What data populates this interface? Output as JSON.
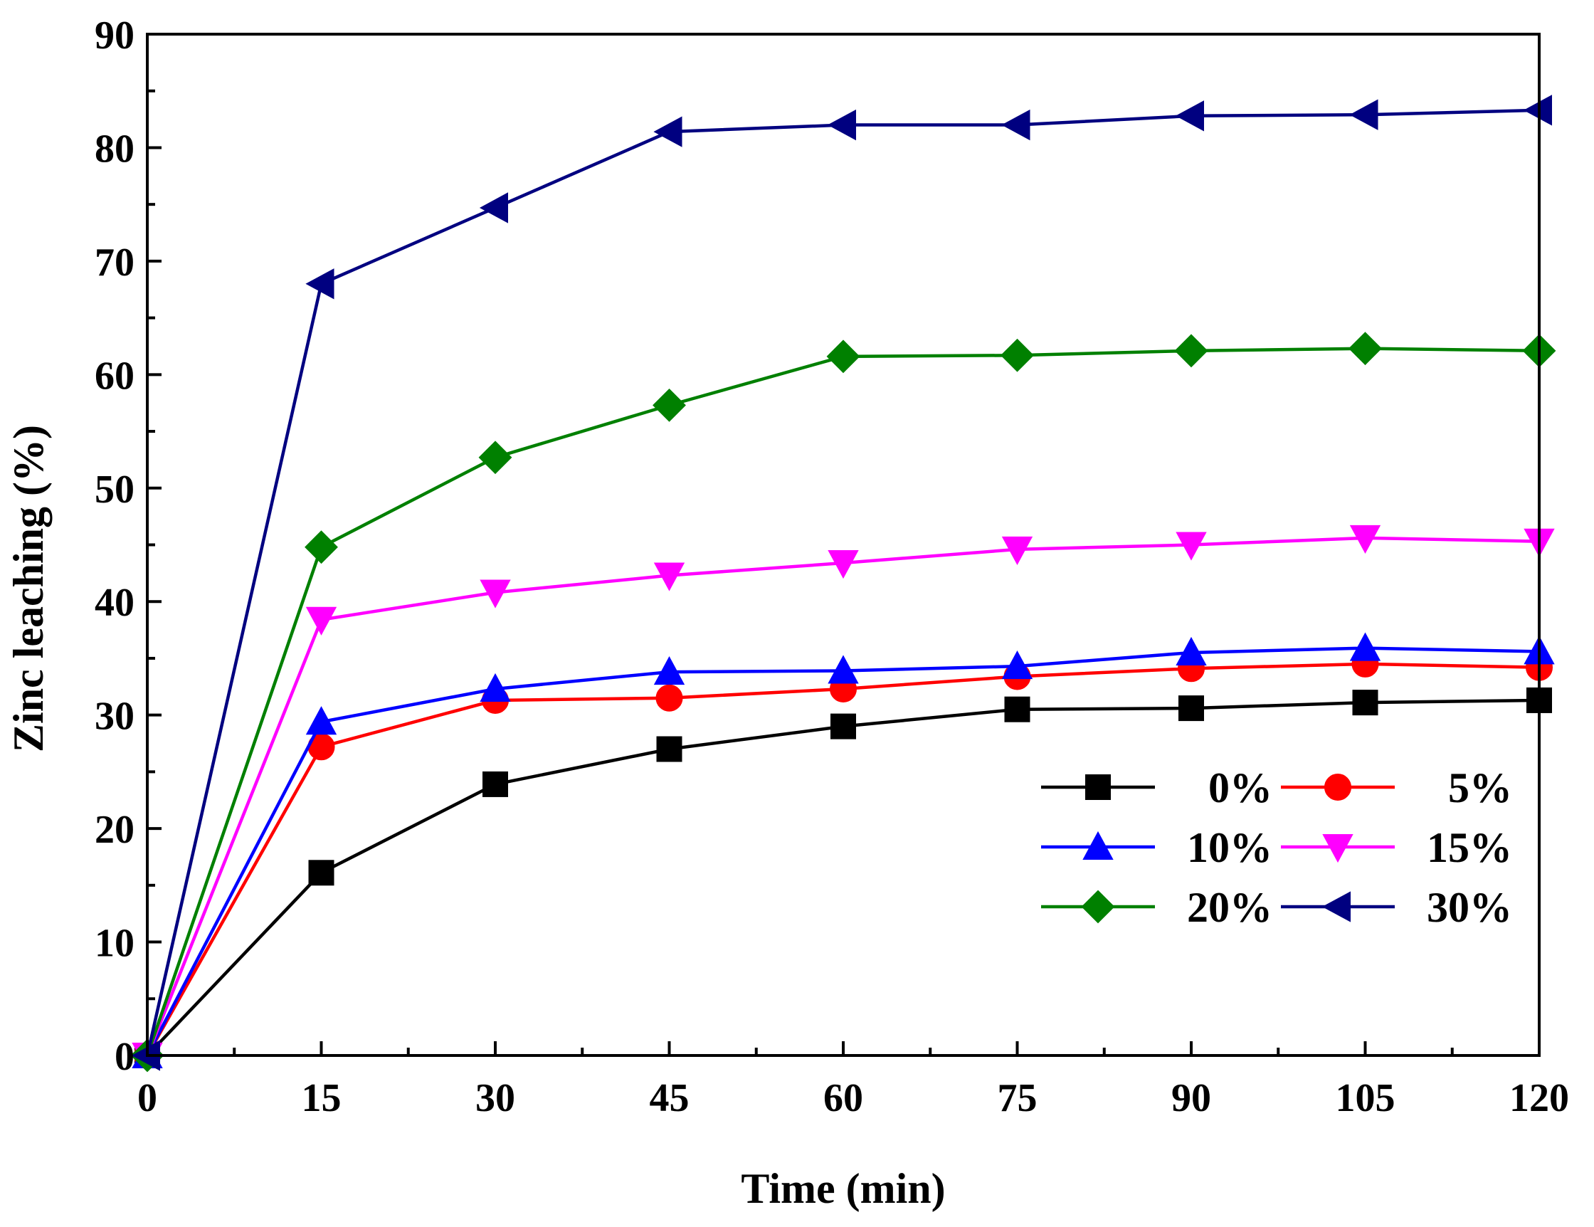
{
  "chart_data": {
    "type": "line",
    "xlabel": "Time (min)",
    "ylabel": "Zinc leaching (%)",
    "xlim": [
      0,
      120
    ],
    "ylim": [
      0,
      90
    ],
    "xticks": [
      "0",
      "15",
      "30",
      "45",
      "60",
      "75",
      "90",
      "105",
      "120"
    ],
    "yticks": [
      "0",
      "10",
      "20",
      "30",
      "40",
      "50",
      "60",
      "70",
      "80",
      "90"
    ],
    "grid": false,
    "legend_position": "bottom-right",
    "x": [
      0,
      15,
      30,
      45,
      60,
      75,
      90,
      105,
      120
    ],
    "series": [
      {
        "name": "0%",
        "color": "#000000",
        "marker": "square",
        "values": [
          0,
          16.1,
          23.9,
          27.0,
          29.0,
          30.5,
          30.6,
          31.1,
          31.3
        ]
      },
      {
        "name": "5%",
        "color": "#ff0000",
        "marker": "circle",
        "values": [
          0,
          27.2,
          31.3,
          31.5,
          32.3,
          33.4,
          34.1,
          34.5,
          34.2
        ]
      },
      {
        "name": "10%",
        "color": "#0000ff",
        "marker": "triangle-up",
        "values": [
          0,
          29.4,
          32.3,
          33.8,
          33.9,
          34.3,
          35.5,
          35.9,
          35.6
        ]
      },
      {
        "name": "15%",
        "color": "#ff00ff",
        "marker": "triangle-down",
        "values": [
          0,
          38.4,
          40.8,
          42.3,
          43.4,
          44.6,
          45.0,
          45.6,
          45.3
        ]
      },
      {
        "name": "20%",
        "color": "#008000",
        "marker": "diamond",
        "values": [
          0,
          44.8,
          52.7,
          57.3,
          61.6,
          61.7,
          62.1,
          62.3,
          62.1
        ]
      },
      {
        "name": "30%",
        "color": "#000080",
        "marker": "triangle-left",
        "values": [
          0,
          68.0,
          74.7,
          81.4,
          82.0,
          82.0,
          82.8,
          82.9,
          83.3
        ]
      }
    ]
  }
}
